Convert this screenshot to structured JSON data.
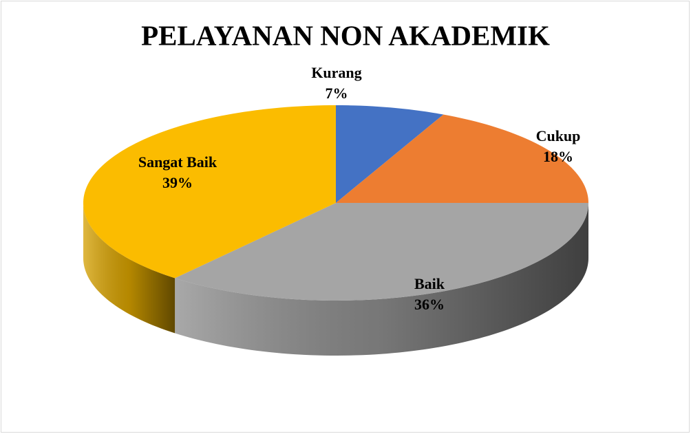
{
  "chart_data": {
    "type": "pie",
    "title": "PELAYANAN NON AKADEMIK",
    "categories": [
      "Kurang",
      "Cukup",
      "Baik",
      "Sangat Baik"
    ],
    "values": [
      7,
      18,
      36,
      39
    ],
    "value_labels": [
      "7%",
      "18%",
      "36%",
      "39%"
    ],
    "colors": [
      "#4472c4",
      "#ed7d31",
      "#a5a5a5",
      "#fbbc00"
    ]
  }
}
